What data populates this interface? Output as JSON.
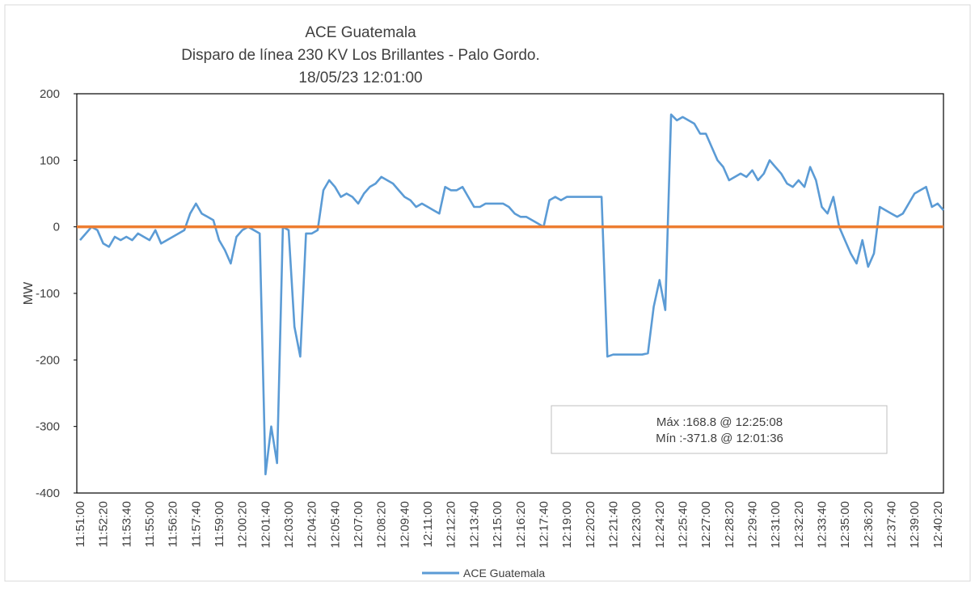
{
  "chart_data": {
    "type": "line",
    "title": [
      "ACE Guatemala",
      "Disparo de línea 230 KV Los Brillantes - Palo Gordo.",
      "18/05/23 12:01:00"
    ],
    "y_label": "MW",
    "categories": [
      "11:51:00",
      null,
      null,
      null,
      "11:52:20",
      null,
      null,
      null,
      "11:53:40",
      null,
      null,
      null,
      "11:55:00",
      null,
      null,
      null,
      "11:56:20",
      null,
      null,
      null,
      "11:57:40",
      null,
      null,
      null,
      "11:59:00",
      null,
      null,
      null,
      "12:00:20",
      null,
      null,
      null,
      "12:01:40",
      null,
      null,
      null,
      "12:03:00",
      null,
      null,
      null,
      "12:04:20",
      null,
      null,
      null,
      "12:05:40",
      null,
      null,
      null,
      "12:07:00",
      null,
      null,
      null,
      "12:08:20",
      null,
      null,
      null,
      "12:09:40",
      null,
      null,
      null,
      "12:11:00",
      null,
      null,
      null,
      "12:12:20",
      null,
      null,
      null,
      "12:13:40",
      null,
      null,
      null,
      "12:15:00",
      null,
      null,
      null,
      "12:16:20",
      null,
      null,
      null,
      "12:17:40",
      null,
      null,
      null,
      "12:19:00",
      null,
      null,
      null,
      "12:20:20",
      null,
      null,
      null,
      "12:21:40",
      null,
      null,
      null,
      "12:23:00",
      null,
      null,
      null,
      "12:24:20",
      null,
      null,
      null,
      "12:25:40",
      null,
      null,
      null,
      "12:27:00",
      null,
      null,
      null,
      "12:28:20",
      null,
      null,
      null,
      "12:29:40",
      null,
      null,
      null,
      "12:31:00",
      null,
      null,
      null,
      "12:32:20",
      null,
      null,
      null,
      "12:33:40",
      null,
      null,
      null,
      "12:35:00",
      null,
      null,
      null,
      "12:36:20",
      null,
      null,
      null,
      "12:37:40",
      null,
      null,
      null,
      "12:39:00",
      null,
      null,
      null,
      "12:40:20",
      null
    ],
    "series": [
      {
        "name": "ACE Guatemala",
        "color": "#5b9bd5",
        "values": [
          -20,
          -10,
          0,
          -5,
          -25,
          -30,
          -15,
          -20,
          -15,
          -20,
          -10,
          -15,
          -20,
          -5,
          -25,
          -20,
          -15,
          -10,
          -5,
          20,
          35,
          20,
          15,
          10,
          -20,
          -35,
          -55,
          -15,
          -5,
          0,
          -5,
          -10,
          -371.8,
          -300,
          -355,
          0,
          -5,
          -150,
          -195,
          -10,
          -10,
          -5,
          55,
          70,
          60,
          45,
          50,
          45,
          35,
          50,
          60,
          65,
          75,
          70,
          65,
          55,
          45,
          40,
          30,
          35,
          30,
          25,
          20,
          60,
          55,
          55,
          60,
          45,
          30,
          30,
          35,
          35,
          35,
          35,
          30,
          20,
          15,
          15,
          10,
          5,
          0,
          40,
          45,
          40,
          45,
          45,
          45,
          45,
          45,
          45,
          45,
          -195,
          -192,
          -192,
          -192,
          -192,
          -192,
          -192,
          -190,
          -120,
          -80,
          -125,
          168.8,
          160,
          165,
          160,
          155,
          140,
          140,
          120,
          100,
          90,
          70,
          75,
          80,
          75,
          85,
          70,
          80,
          100,
          90,
          80,
          65,
          60,
          70,
          60,
          90,
          70,
          30,
          20,
          45,
          0,
          -20,
          -40,
          -55,
          -20,
          -60,
          -40,
          30,
          25,
          20,
          15,
          20,
          35,
          50,
          55,
          60,
          30,
          35,
          25
        ]
      }
    ],
    "reference_line": {
      "value": 0,
      "color": "#ed7d31"
    },
    "annotation": [
      "Máx :168.8 @ 12:25:08",
      "Mín :-371.8 @ 12:01:36"
    ],
    "ylim": [
      -400,
      200
    ],
    "yticks": [
      200,
      100,
      0,
      -100,
      -200,
      -300,
      -400
    ],
    "legend": "bottom"
  }
}
